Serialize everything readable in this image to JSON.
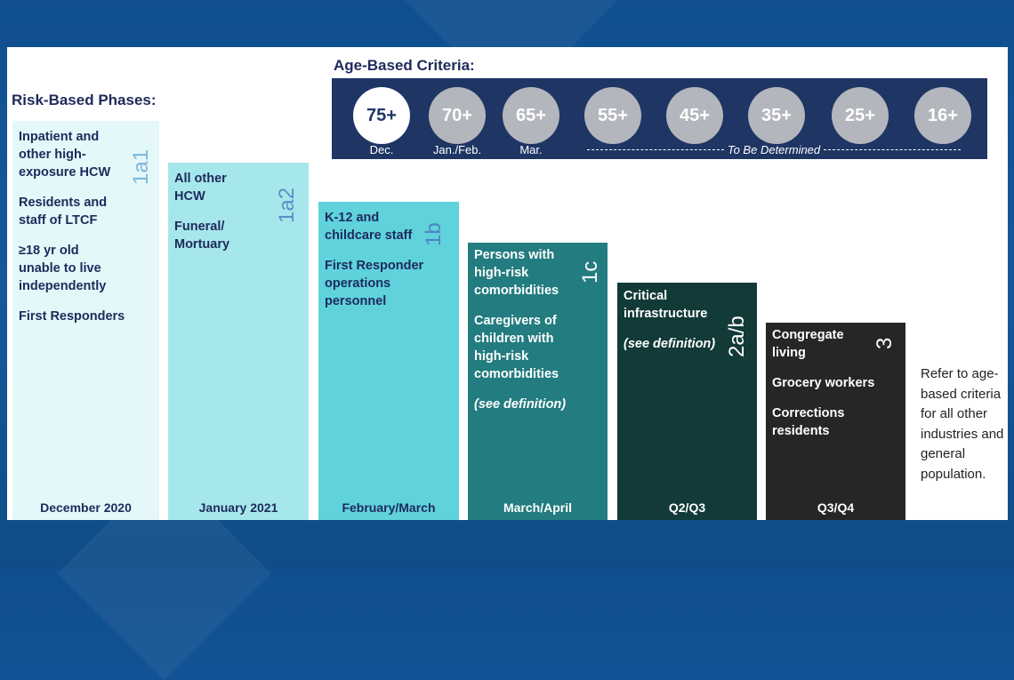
{
  "headings": {
    "age_based": "Age-Based Criteria:",
    "risk_based": "Risk-Based Phases:"
  },
  "age_groups": [
    {
      "label": "75+",
      "sub": "Dec.",
      "active": true
    },
    {
      "label": "70+",
      "sub": "Jan./Feb.",
      "active": false
    },
    {
      "label": "65+",
      "sub": "Mar.",
      "active": false
    },
    {
      "label": "55+",
      "sub": "",
      "active": false
    },
    {
      "label": "45+",
      "sub": "",
      "active": false
    },
    {
      "label": "35+",
      "sub": "",
      "active": false
    },
    {
      "label": "25+",
      "sub": "",
      "active": false
    },
    {
      "label": "16+",
      "sub": "",
      "active": false
    }
  ],
  "tbd_label": "To Be Determined",
  "phases": [
    {
      "code": "1a1",
      "period": "December 2020",
      "items": [
        "Inpatient and other high-exposure HCW",
        "Residents and staff of LTCF",
        "≥18 yr old unable to live independently",
        "First Responders"
      ],
      "color": "#e4f7f9",
      "text_color": "#1e2a5a",
      "code_color": "#7fb6d6"
    },
    {
      "code": "1a2",
      "period": "January 2021",
      "items": [
        "All other HCW",
        "Funeral/ Mortuary"
      ],
      "color": "#a6e7ec",
      "text_color": "#1e2a5a",
      "code_color": "#5b8fc6"
    },
    {
      "code": "1b",
      "period": "February/March",
      "items": [
        "K-12 and childcare staff",
        "First Responder operations personnel"
      ],
      "color": "#5fd2dc",
      "text_color": "#1e2a5a",
      "code_color": "#4f84c0"
    },
    {
      "code": "1c",
      "period": "March/April",
      "items": [
        "Persons with high-risk comorbidities",
        "Caregivers of children with high-risk comorbidities",
        "(see definition)"
      ],
      "color": "#237c7f",
      "text_color": "#ffffff",
      "code_color": "#ffffff"
    },
    {
      "code": "2a/b",
      "period": "Q2/Q3",
      "items": [
        "Critical infrastructure",
        "(see definition)"
      ],
      "color": "#123a38",
      "text_color": "#ffffff",
      "code_color": "#ffffff"
    },
    {
      "code": "3",
      "period": "Q3/Q4",
      "items": [
        "Congregate living",
        "Grocery workers",
        "Corrections residents"
      ],
      "color": "#262626",
      "text_color": "#ffffff",
      "code_color": "#ffffff"
    }
  ],
  "refer_text": "Refer to age-based criteria for all other industries and general population."
}
